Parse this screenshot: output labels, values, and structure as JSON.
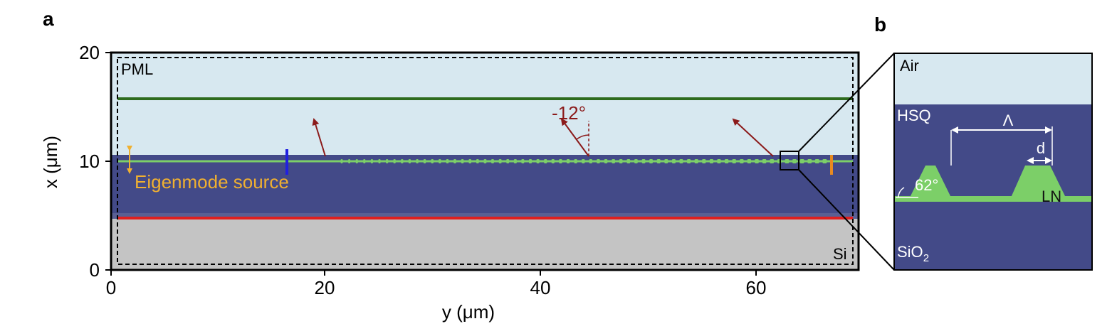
{
  "panels": {
    "a": "a",
    "b": "b"
  },
  "axes": {
    "y_ticks": [
      "0",
      "20",
      "40",
      "60"
    ],
    "x_ticks": [
      "0",
      "10",
      "20"
    ],
    "xlabel": "y (μm)",
    "ylabel": "x (μm)"
  },
  "labels_a": {
    "pml": "PML",
    "angle": "-12°",
    "source": "Eigenmode source",
    "si": "Si"
  },
  "labels_b": {
    "air": "Air",
    "hsq": "HSQ",
    "period": "Λ",
    "width": "d",
    "sidewall_angle": "62°",
    "ln": "LN",
    "sio2_base": "SiO",
    "sio2_sub": "2"
  },
  "colors": {
    "air": "#d7e8f0",
    "hsq": "#434a88",
    "silicon": "#c4c4c4",
    "ln": "#7ccf68",
    "monitor_top": "#2e6b1e",
    "monitor_bottom": "#e02020",
    "beam_arrow": "#8b1a1a",
    "source": "#f0b030",
    "monitor_left": "#2020e0",
    "monitor_right": "#e88a20"
  },
  "icons": {
    "beam": "arrow-icon",
    "source": "double-arrow-icon",
    "zoom": "zoom-box-icon"
  }
}
